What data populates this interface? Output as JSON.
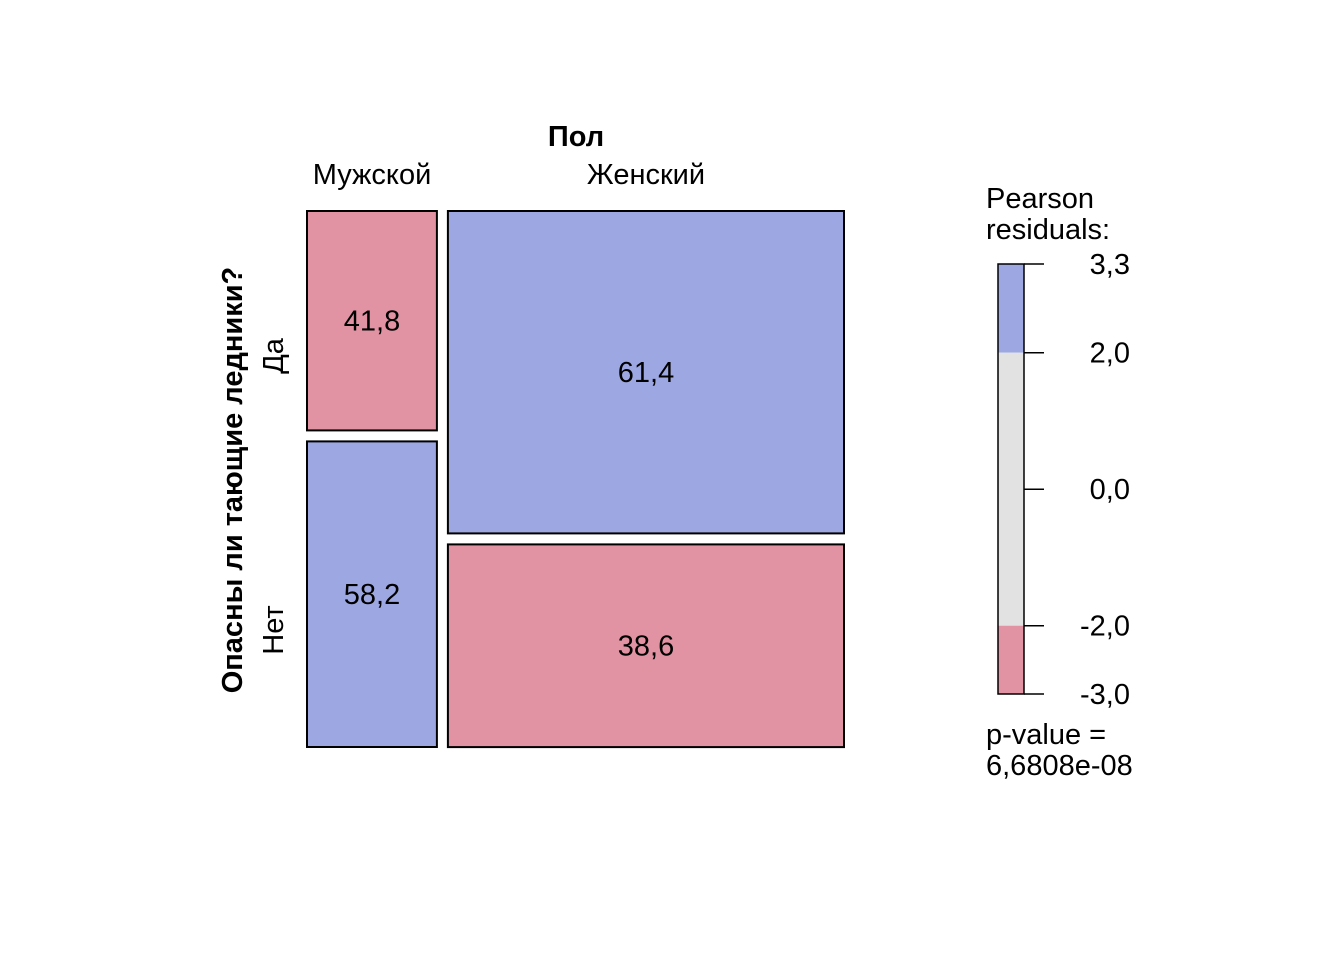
{
  "chart_data": {
    "type": "mosaic",
    "col_variable": "Пол",
    "row_variable": "Опасны ли тающие ледники?",
    "columns": [
      "Мужской",
      "Женский"
    ],
    "rows": [
      "Да",
      "Нет"
    ],
    "cells": [
      {
        "column": "Мужской",
        "row": "Да",
        "value": 41.8,
        "label": "41,8",
        "residual_band": "negative"
      },
      {
        "column": "Женский",
        "row": "Да",
        "value": 61.4,
        "label": "61,4",
        "residual_band": "positive"
      },
      {
        "column": "Мужской",
        "row": "Нет",
        "value": 58.2,
        "label": "58,2",
        "residual_band": "positive"
      },
      {
        "column": "Женский",
        "row": "Нет",
        "value": 38.6,
        "label": "38,6",
        "residual_band": "negative"
      }
    ],
    "column_shares": {
      "Мужской": 0.247,
      "Женский": 0.753
    },
    "legend": {
      "title_line1": "Pearson",
      "title_line2": "residuals:",
      "range": [
        -3.0,
        3.3
      ],
      "bands": [
        {
          "from": 2.0,
          "to": 3.3,
          "color": "#9DA8E2"
        },
        {
          "from": -2.0,
          "to": 2.0,
          "color": "#E2E2E2"
        },
        {
          "from": -3.0,
          "to": -2.0,
          "color": "#E293A3"
        }
      ],
      "ticks": [
        {
          "value": 3.3,
          "label": "3,3"
        },
        {
          "value": 2.0,
          "label": "2,0"
        },
        {
          "value": 0.0,
          "label": "0,0"
        },
        {
          "value": -2.0,
          "label": "-2,0"
        },
        {
          "value": -3.0,
          "label": "-3,0"
        }
      ],
      "pvalue_line1": "p-value =",
      "pvalue_line2": "6,6808e-08"
    },
    "colors": {
      "positive": "#9DA8E2",
      "neutral": "#E2E2E2",
      "negative": "#E293A3",
      "border": "#000000"
    }
  }
}
